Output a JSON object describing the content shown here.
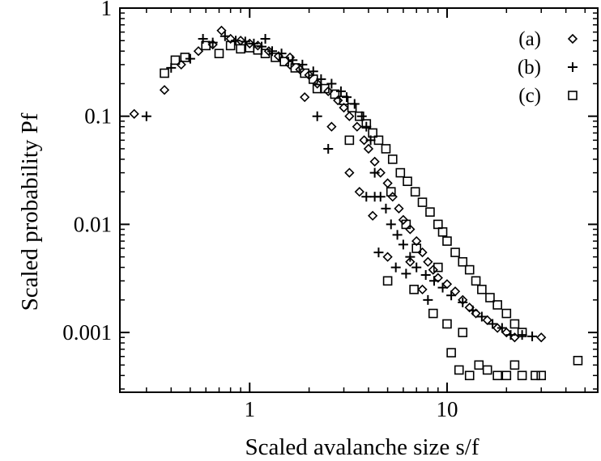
{
  "chart_data": {
    "type": "scatter",
    "title": "",
    "xlabel": "Scaled avalanche size  s/f",
    "ylabel": "Scaled probability  Pf",
    "xscale": "log",
    "yscale": "log",
    "xlim": [
      0.22,
      58
    ],
    "ylim": [
      0.00028,
      1.0
    ],
    "x_ticks": [
      {
        "value": 1,
        "label": "1"
      },
      {
        "value": 10,
        "label": "10"
      }
    ],
    "y_ticks": [
      {
        "value": 1,
        "label": "1"
      },
      {
        "value": 0.1,
        "label": "0.1"
      },
      {
        "value": 0.01,
        "label": "0.01"
      },
      {
        "value": 0.001,
        "label": "0.001"
      }
    ],
    "grid": false,
    "legend_position": "top-right",
    "series": [
      {
        "name": "(a)",
        "marker": "diamond",
        "points": [
          [
            0.26,
            0.105
          ],
          [
            0.37,
            0.175
          ],
          [
            0.45,
            0.3
          ],
          [
            0.55,
            0.4
          ],
          [
            0.65,
            0.46
          ],
          [
            0.72,
            0.62
          ],
          [
            0.8,
            0.52
          ],
          [
            0.9,
            0.5
          ],
          [
            1.0,
            0.47
          ],
          [
            1.1,
            0.45
          ],
          [
            1.25,
            0.4
          ],
          [
            1.4,
            0.36
          ],
          [
            1.6,
            0.3
          ],
          [
            1.8,
            0.27
          ],
          [
            2.0,
            0.24
          ],
          [
            2.2,
            0.2
          ],
          [
            2.5,
            0.17
          ],
          [
            2.8,
            0.14
          ],
          [
            3.0,
            0.12
          ],
          [
            3.2,
            0.1
          ],
          [
            3.5,
            0.08
          ],
          [
            3.8,
            0.06
          ],
          [
            4.0,
            0.05
          ],
          [
            4.3,
            0.038
          ],
          [
            4.6,
            0.03
          ],
          [
            5.0,
            0.024
          ],
          [
            5.3,
            0.018
          ],
          [
            5.7,
            0.014
          ],
          [
            6.0,
            0.011
          ],
          [
            6.5,
            0.009
          ],
          [
            7.0,
            0.007
          ],
          [
            7.5,
            0.0055
          ],
          [
            8.0,
            0.0045
          ],
          [
            8.5,
            0.0038
          ],
          [
            9.0,
            0.0032
          ],
          [
            10.0,
            0.0028
          ],
          [
            11.0,
            0.0024
          ],
          [
            12.0,
            0.002
          ],
          [
            13.0,
            0.0017
          ],
          [
            14.0,
            0.0015
          ],
          [
            16.0,
            0.0013
          ],
          [
            18.0,
            0.0011
          ],
          [
            20.0,
            0.001
          ],
          [
            22.0,
            0.0009
          ],
          [
            30.0,
            0.0009
          ],
          [
            5.0,
            0.005
          ],
          [
            6.5,
            0.0045
          ],
          [
            3.2,
            0.03
          ],
          [
            4.2,
            0.012
          ],
          [
            7.5,
            0.0025
          ],
          [
            2.6,
            0.08
          ],
          [
            1.6,
            0.35
          ],
          [
            1.9,
            0.15
          ],
          [
            3.6,
            0.02
          ]
        ]
      },
      {
        "name": "(b)",
        "marker": "plus",
        "points": [
          [
            0.3,
            0.1
          ],
          [
            0.4,
            0.28
          ],
          [
            0.5,
            0.34
          ],
          [
            0.58,
            0.52
          ],
          [
            0.65,
            0.48
          ],
          [
            0.75,
            0.55
          ],
          [
            0.85,
            0.5
          ],
          [
            0.95,
            0.49
          ],
          [
            1.05,
            0.47
          ],
          [
            1.15,
            0.44
          ],
          [
            1.3,
            0.4
          ],
          [
            1.45,
            0.38
          ],
          [
            1.65,
            0.33
          ],
          [
            1.85,
            0.3
          ],
          [
            2.1,
            0.26
          ],
          [
            2.3,
            0.22
          ],
          [
            2.6,
            0.2
          ],
          [
            2.9,
            0.17
          ],
          [
            3.1,
            0.15
          ],
          [
            3.4,
            0.13
          ],
          [
            3.7,
            0.1
          ],
          [
            3.9,
            0.08
          ],
          [
            4.1,
            0.06
          ],
          [
            4.3,
            0.03
          ],
          [
            4.6,
            0.018
          ],
          [
            4.9,
            0.014
          ],
          [
            5.2,
            0.01
          ],
          [
            5.6,
            0.008
          ],
          [
            6.0,
            0.0065
          ],
          [
            6.5,
            0.005
          ],
          [
            7.0,
            0.004
          ],
          [
            7.8,
            0.0034
          ],
          [
            8.6,
            0.003
          ],
          [
            9.5,
            0.0026
          ],
          [
            10.5,
            0.0022
          ],
          [
            12.0,
            0.0019
          ],
          [
            13.5,
            0.0016
          ],
          [
            15.0,
            0.0014
          ],
          [
            17.0,
            0.0012
          ],
          [
            19.0,
            0.0011
          ],
          [
            21.0,
            0.00095
          ],
          [
            24.0,
            0.00095
          ],
          [
            27.0,
            0.00092
          ],
          [
            3.9,
            0.018
          ],
          [
            4.3,
            0.018
          ],
          [
            4.5,
            0.0055
          ],
          [
            6.2,
            0.0035
          ],
          [
            8.0,
            0.002
          ],
          [
            2.5,
            0.05
          ],
          [
            1.2,
            0.52
          ],
          [
            2.2,
            0.1
          ],
          [
            5.5,
            0.004
          ]
        ]
      },
      {
        "name": "(c)",
        "marker": "square",
        "points": [
          [
            0.37,
            0.25
          ],
          [
            0.42,
            0.33
          ],
          [
            0.47,
            0.35
          ],
          [
            0.6,
            0.45
          ],
          [
            0.7,
            0.38
          ],
          [
            0.8,
            0.45
          ],
          [
            0.9,
            0.42
          ],
          [
            1.0,
            0.43
          ],
          [
            1.1,
            0.41
          ],
          [
            1.2,
            0.38
          ],
          [
            1.35,
            0.35
          ],
          [
            1.5,
            0.32
          ],
          [
            1.7,
            0.28
          ],
          [
            1.9,
            0.25
          ],
          [
            2.1,
            0.22
          ],
          [
            2.4,
            0.18
          ],
          [
            2.7,
            0.16
          ],
          [
            3.0,
            0.14
          ],
          [
            3.3,
            0.12
          ],
          [
            3.6,
            0.1
          ],
          [
            3.9,
            0.085
          ],
          [
            4.2,
            0.07
          ],
          [
            4.5,
            0.06
          ],
          [
            4.9,
            0.05
          ],
          [
            5.3,
            0.04
          ],
          [
            5.8,
            0.03
          ],
          [
            6.3,
            0.025
          ],
          [
            6.9,
            0.02
          ],
          [
            7.5,
            0.016
          ],
          [
            8.2,
            0.013
          ],
          [
            9.0,
            0.01
          ],
          [
            9.5,
            0.0085
          ],
          [
            10.0,
            0.007
          ],
          [
            11.0,
            0.0055
          ],
          [
            12.0,
            0.0045
          ],
          [
            13.0,
            0.0038
          ],
          [
            14.0,
            0.003
          ],
          [
            15.0,
            0.0025
          ],
          [
            16.5,
            0.0021
          ],
          [
            18.0,
            0.0018
          ],
          [
            20.0,
            0.0015
          ],
          [
            22.0,
            0.0012
          ],
          [
            24.0,
            0.001
          ],
          [
            10.5,
            0.00065
          ],
          [
            11.5,
            0.00045
          ],
          [
            13.0,
            0.0004
          ],
          [
            14.5,
            0.0005
          ],
          [
            16.0,
            0.00045
          ],
          [
            18.0,
            0.0004
          ],
          [
            20.0,
            0.0004
          ],
          [
            22.0,
            0.0005
          ],
          [
            24.0,
            0.0004
          ],
          [
            28.0,
            0.0004
          ],
          [
            30.0,
            0.0004
          ],
          [
            46.0,
            0.00055
          ],
          [
            5.0,
            0.003
          ],
          [
            6.8,
            0.0025
          ],
          [
            8.5,
            0.0015
          ],
          [
            10.0,
            0.0012
          ],
          [
            12.0,
            0.001
          ],
          [
            5.2,
            0.02
          ],
          [
            6.2,
            0.01
          ],
          [
            3.2,
            0.06
          ],
          [
            7.0,
            0.006
          ],
          [
            9.0,
            0.004
          ],
          [
            2.2,
            0.18
          ]
        ]
      }
    ]
  }
}
